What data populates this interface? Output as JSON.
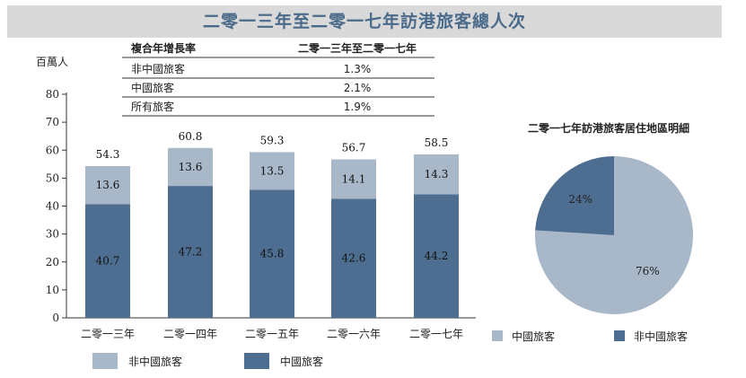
{
  "title": "二零一三年至二零一七年訪港旅客總人次",
  "colors": {
    "china": "#4d6e91",
    "non_china": "#a8b8c9",
    "axis": "#333333",
    "title_bar": "#d9d9d9",
    "title_text": "#4a6a8a"
  },
  "growth_table": {
    "headers": [
      "複合年增長率",
      "二零一三年至二零一七年"
    ],
    "rows": [
      [
        "非中國旅客",
        "1.3%"
      ],
      [
        "中國旅客",
        "2.1%"
      ],
      [
        "所有旅客",
        "1.9%"
      ]
    ]
  },
  "chart_data": [
    {
      "type": "bar",
      "stacked": true,
      "ylabel": "百萬人",
      "ylim": [
        0,
        80
      ],
      "yticks": [
        0,
        10,
        20,
        30,
        40,
        50,
        60,
        70,
        80
      ],
      "categories": [
        "二零一三年",
        "二零一四年",
        "二零一五年",
        "二零一六年",
        "二零一七年"
      ],
      "series": [
        {
          "name": "中國旅客",
          "color": "#4d6e91",
          "values": [
            40.7,
            47.2,
            45.8,
            42.6,
            44.2
          ],
          "labels": [
            "40.7",
            "47.2",
            "45.8",
            "42.6",
            "44.2"
          ]
        },
        {
          "name": "非中國旅客",
          "color": "#a8b8c9",
          "values": [
            13.6,
            13.6,
            13.5,
            14.1,
            14.3
          ],
          "labels": [
            "13.6",
            "13.6",
            "13.5",
            "14.1",
            "14.3"
          ]
        }
      ],
      "totals": [
        54.3,
        60.8,
        59.3,
        56.7,
        58.5
      ],
      "total_labels": [
        "54.3",
        "60.8",
        "59.3",
        "56.7",
        "58.5"
      ],
      "legend": [
        "非中國旅客",
        "中國旅客"
      ],
      "legend_position": "bottom"
    },
    {
      "type": "pie",
      "title": "二零一七年訪港旅客居住地區明細",
      "slices": [
        {
          "name": "中國旅客",
          "value": 76,
          "label": "76%",
          "color": "#a8b8c9"
        },
        {
          "name": "非中國旅客",
          "value": 24,
          "label": "24%",
          "color": "#4d6e91"
        }
      ],
      "legend": [
        "中國旅客",
        "非中國旅客"
      ],
      "legend_position": "bottom"
    }
  ]
}
